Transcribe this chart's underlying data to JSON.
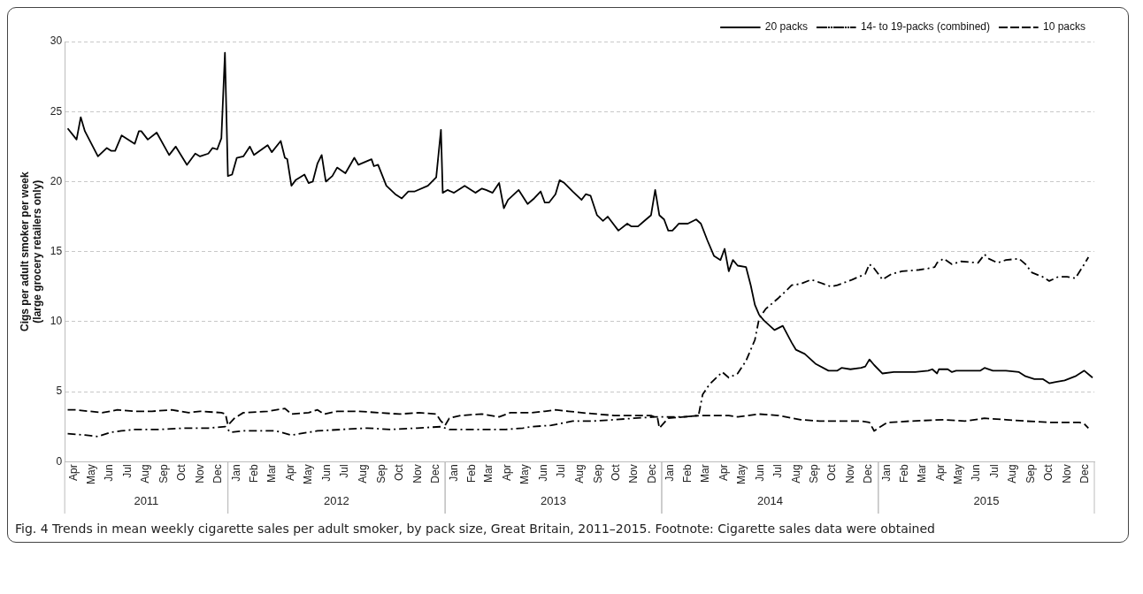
{
  "chart_data": {
    "type": "line",
    "title": "Fig. 4 Trends in mean weekly cigarette sales per adult smoker, by pack size, Great Britain, 2011–2015.",
    "ylabel": "Cigs per adult smoker per week\n(large grocery retailers only)",
    "annotations": [
      "2011",
      "2012",
      "2013",
      "2014",
      "2015",
      "Footnote: Cigarette sales data were obtained"
    ],
    "xlim": [
      "2011-04-01",
      "2015-12-31"
    ],
    "xticks": [
      {
        "value": "2011-04-16",
        "label": "Apr"
      },
      {
        "value": "2011-05-16",
        "label": "May"
      },
      {
        "value": "2011-06-16",
        "label": "Jun"
      },
      {
        "value": "2011-07-16",
        "label": "Jul"
      },
      {
        "value": "2011-08-16",
        "label": "Aug"
      },
      {
        "value": "2011-09-16",
        "label": "Sep"
      },
      {
        "value": "2011-10-16",
        "label": "Oct"
      },
      {
        "value": "2011-11-16",
        "label": "Nov"
      },
      {
        "value": "2011-12-16",
        "label": "Dec"
      },
      {
        "value": "2012-01-16",
        "label": "Jan"
      },
      {
        "value": "2012-02-15",
        "label": "Feb"
      },
      {
        "value": "2012-03-16",
        "label": "Mar"
      },
      {
        "value": "2012-04-16",
        "label": "Apr"
      },
      {
        "value": "2012-05-16",
        "label": "May"
      },
      {
        "value": "2012-06-16",
        "label": "Jun"
      },
      {
        "value": "2012-07-16",
        "label": "Jul"
      },
      {
        "value": "2012-08-16",
        "label": "Aug"
      },
      {
        "value": "2012-09-16",
        "label": "Sep"
      },
      {
        "value": "2012-10-16",
        "label": "Oct"
      },
      {
        "value": "2012-11-16",
        "label": "Nov"
      },
      {
        "value": "2012-12-16",
        "label": "Dec"
      },
      {
        "value": "2013-01-16",
        "label": "Jan"
      },
      {
        "value": "2013-02-15",
        "label": "Feb"
      },
      {
        "value": "2013-03-16",
        "label": "Mar"
      },
      {
        "value": "2013-04-16",
        "label": "Apr"
      },
      {
        "value": "2013-05-16",
        "label": "May"
      },
      {
        "value": "2013-06-16",
        "label": "Jun"
      },
      {
        "value": "2013-07-16",
        "label": "Jul"
      },
      {
        "value": "2013-08-16",
        "label": "Aug"
      },
      {
        "value": "2013-09-16",
        "label": "Sep"
      },
      {
        "value": "2013-10-16",
        "label": "Oct"
      },
      {
        "value": "2013-11-16",
        "label": "Nov"
      },
      {
        "value": "2013-12-16",
        "label": "Dec"
      },
      {
        "value": "2014-01-16",
        "label": "Jan"
      },
      {
        "value": "2014-02-15",
        "label": "Feb"
      },
      {
        "value": "2014-03-16",
        "label": "Mar"
      },
      {
        "value": "2014-04-16",
        "label": "Apr"
      },
      {
        "value": "2014-05-16",
        "label": "May"
      },
      {
        "value": "2014-06-16",
        "label": "Jun"
      },
      {
        "value": "2014-07-16",
        "label": "Jul"
      },
      {
        "value": "2014-08-16",
        "label": "Aug"
      },
      {
        "value": "2014-09-16",
        "label": "Sep"
      },
      {
        "value": "2014-10-16",
        "label": "Oct"
      },
      {
        "value": "2014-11-16",
        "label": "Nov"
      },
      {
        "value": "2014-12-16",
        "label": "Dec"
      },
      {
        "value": "2015-01-16",
        "label": "Jan"
      },
      {
        "value": "2015-02-15",
        "label": "Feb"
      },
      {
        "value": "2015-03-16",
        "label": "Mar"
      },
      {
        "value": "2015-04-16",
        "label": "Apr"
      },
      {
        "value": "2015-05-16",
        "label": "May"
      },
      {
        "value": "2015-06-16",
        "label": "Jun"
      },
      {
        "value": "2015-07-16",
        "label": "Jul"
      },
      {
        "value": "2015-08-16",
        "label": "Aug"
      },
      {
        "value": "2015-09-16",
        "label": "Sep"
      },
      {
        "value": "2015-10-16",
        "label": "Oct"
      },
      {
        "value": "2015-11-16",
        "label": "Nov"
      },
      {
        "value": "2015-12-16",
        "label": "Dec"
      }
    ],
    "ylim": [
      0,
      30
    ],
    "yticks": [
      0,
      5,
      10,
      15,
      20,
      25,
      30
    ],
    "grid": "y",
    "legend": "top right",
    "series": [
      {
        "name": "20 packs",
        "color": "#000000",
        "line_style": "solid",
        "x": [
          "2011-04-06",
          "2011-04-21",
          "2011-04-28",
          "2011-05-05",
          "2011-05-27",
          "2011-06-11",
          "2011-06-18",
          "2011-06-25",
          "2011-07-06",
          "2011-07-28",
          "2011-08-04",
          "2011-08-08",
          "2011-08-19",
          "2011-09-03",
          "2011-09-24",
          "2011-10-05",
          "2011-10-24",
          "2011-11-07",
          "2011-11-15",
          "2011-11-29",
          "2011-12-06",
          "2011-12-14",
          "2011-12-21",
          "2011-12-27",
          "2012-01-01",
          "2012-01-08",
          "2012-01-16",
          "2012-01-27",
          "2012-02-07",
          "2012-02-14",
          "2012-03-08",
          "2012-03-15",
          "2012-03-30",
          "2012-04-06",
          "2012-04-10",
          "2012-04-17",
          "2012-04-24",
          "2012-05-09",
          "2012-05-16",
          "2012-05-23",
          "2012-05-31",
          "2012-06-07",
          "2012-06-14",
          "2012-06-25",
          "2012-07-03",
          "2012-07-17",
          "2012-08-01",
          "2012-08-08",
          "2012-08-30",
          "2012-09-03",
          "2012-09-10",
          "2012-09-24",
          "2012-10-09",
          "2012-10-20",
          "2012-10-31",
          "2012-11-11",
          "2012-12-03",
          "2012-12-17",
          "2012-12-25",
          "2012-12-28",
          "2013-01-05",
          "2013-01-16",
          "2013-02-03",
          "2013-02-21",
          "2013-03-04",
          "2013-03-11",
          "2013-03-22",
          "2013-04-02",
          "2013-04-10",
          "2013-04-17",
          "2013-05-05",
          "2013-05-20",
          "2013-05-31",
          "2013-06-11",
          "2013-06-18",
          "2013-06-25",
          "2013-07-06",
          "2013-07-13",
          "2013-07-21",
          "2013-08-04",
          "2013-08-19",
          "2013-08-26",
          "2013-09-03",
          "2013-09-14",
          "2013-09-24",
          "2013-10-02",
          "2013-10-20",
          "2013-11-04",
          "2013-11-11",
          "2013-11-22",
          "2013-12-03",
          "2013-12-14",
          "2013-12-21",
          "2013-12-28",
          "2014-01-05",
          "2014-01-12",
          "2014-01-19",
          "2014-01-30",
          "2014-02-14",
          "2014-02-28",
          "2014-03-08",
          "2014-03-19",
          "2014-03-30",
          "2014-04-10",
          "2014-04-17",
          "2014-04-24",
          "2014-05-01",
          "2014-05-09",
          "2014-05-23",
          "2014-05-31",
          "2014-06-07",
          "2014-06-14",
          "2014-06-22",
          "2014-07-10",
          "2014-07-24",
          "2014-08-08",
          "2014-08-15",
          "2014-08-30",
          "2014-09-17",
          "2014-10-09",
          "2014-10-24",
          "2014-10-31",
          "2014-11-15",
          "2014-12-03",
          "2014-12-10",
          "2014-12-17",
          "2014-12-25",
          "2015-01-08",
          "2015-01-27",
          "2015-02-03",
          "2015-03-04",
          "2015-03-26",
          "2015-04-02",
          "2015-04-10",
          "2015-04-13",
          "2015-04-28",
          "2015-05-05",
          "2015-05-12",
          "2015-06-11",
          "2015-06-22",
          "2015-06-29",
          "2015-07-13",
          "2015-08-04",
          "2015-08-26",
          "2015-09-06",
          "2015-09-21",
          "2015-10-05",
          "2015-10-16",
          "2015-10-27",
          "2015-11-11",
          "2015-11-29",
          "2015-12-14",
          "2015-12-28"
        ],
        "values": [
          23.8,
          23.0,
          24.6,
          23.6,
          21.8,
          22.4,
          22.2,
          22.2,
          23.3,
          22.7,
          23.6,
          23.6,
          23.0,
          23.5,
          21.9,
          22.5,
          21.2,
          22.0,
          21.8,
          22.0,
          22.4,
          22.3,
          23.1,
          29.2,
          20.4,
          20.5,
          21.7,
          21.8,
          22.5,
          21.9,
          22.6,
          22.1,
          22.9,
          21.7,
          21.6,
          19.7,
          20.1,
          20.5,
          19.9,
          20.0,
          21.3,
          21.9,
          20.0,
          20.4,
          21.0,
          20.6,
          21.7,
          21.2,
          21.6,
          21.1,
          21.2,
          19.7,
          19.1,
          18.8,
          19.3,
          19.3,
          19.7,
          20.3,
          23.7,
          19.2,
          19.4,
          19.2,
          19.7,
          19.2,
          19.5,
          19.4,
          19.2,
          19.9,
          18.1,
          18.7,
          19.4,
          18.4,
          18.8,
          19.3,
          18.5,
          18.5,
          19.1,
          20.1,
          19.9,
          19.3,
          18.7,
          19.1,
          19.0,
          17.6,
          17.2,
          17.5,
          16.5,
          17.0,
          16.8,
          16.8,
          17.2,
          17.6,
          19.4,
          17.6,
          17.3,
          16.5,
          16.5,
          17.0,
          17.0,
          17.3,
          17.0,
          15.8,
          14.7,
          14.4,
          15.2,
          13.6,
          14.4,
          14.0,
          13.9,
          12.6,
          11.2,
          10.5,
          10.1,
          9.4,
          9.7,
          8.5,
          8.0,
          7.7,
          7.0,
          6.5,
          6.5,
          6.7,
          6.6,
          6.7,
          6.8,
          7.3,
          6.9,
          6.3,
          6.4,
          6.4,
          6.4,
          6.5,
          6.6,
          6.3,
          6.6,
          6.6,
          6.4,
          6.5,
          6.5,
          6.5,
          6.7,
          6.5,
          6.5,
          6.4,
          6.1,
          5.9,
          5.9,
          5.6,
          5.7,
          5.8,
          6.1,
          6.5,
          6.0
        ]
      },
      {
        "name": "14- to 19-packs (combined)",
        "color": "#000000",
        "line_style": "dashdot",
        "x": [
          "2011-04-06",
          "2011-05-05",
          "2011-05-27",
          "2011-06-18",
          "2011-07-06",
          "2011-07-28",
          "2011-09-06",
          "2011-10-20",
          "2011-11-29",
          "2011-12-28",
          "2012-01-05",
          "2012-01-27",
          "2012-03-22",
          "2012-04-17",
          "2012-05-16",
          "2012-05-31",
          "2012-07-10",
          "2012-08-23",
          "2012-10-02",
          "2012-11-15",
          "2012-12-25",
          "2013-01-08",
          "2013-03-04",
          "2013-04-13",
          "2013-05-12",
          "2013-05-27",
          "2013-06-29",
          "2013-08-04",
          "2013-09-06",
          "2013-10-13",
          "2013-11-15",
          "2013-12-21",
          "2014-01-12",
          "2014-02-07",
          "2014-03-04",
          "2014-03-11",
          "2014-03-22",
          "2014-04-13",
          "2014-04-24",
          "2014-05-09",
          "2014-05-23",
          "2014-06-07",
          "2014-06-14",
          "2014-06-25",
          "2014-07-17",
          "2014-08-01",
          "2014-08-08",
          "2014-08-23",
          "2014-09-10",
          "2014-09-24",
          "2014-10-13",
          "2014-10-24",
          "2014-11-18",
          "2014-12-10",
          "2014-12-17",
          "2014-12-25",
          "2015-01-08",
          "2015-01-23",
          "2015-02-10",
          "2015-03-11",
          "2015-03-26",
          "2015-04-06",
          "2015-04-10",
          "2015-04-21",
          "2015-05-05",
          "2015-05-20",
          "2015-06-18",
          "2015-06-29",
          "2015-07-06",
          "2015-07-21",
          "2015-08-04",
          "2015-08-26",
          "2015-09-06",
          "2015-09-17",
          "2015-10-05",
          "2015-10-16",
          "2015-10-31",
          "2015-11-15",
          "2015-11-29",
          "2015-12-14",
          "2015-12-21"
        ],
        "values": [
          2.0,
          1.9,
          1.8,
          2.1,
          2.2,
          2.3,
          2.3,
          2.4,
          2.4,
          2.5,
          2.1,
          2.2,
          2.2,
          1.9,
          2.1,
          2.2,
          2.3,
          2.4,
          2.3,
          2.4,
          2.5,
          2.3,
          2.3,
          2.3,
          2.4,
          2.5,
          2.6,
          2.9,
          2.9,
          3.0,
          3.1,
          3.2,
          3.2,
          3.2,
          3.3,
          4.8,
          5.5,
          6.4,
          6.0,
          6.3,
          7.2,
          8.7,
          10.2,
          10.9,
          11.7,
          12.3,
          12.6,
          12.7,
          13.0,
          12.8,
          12.5,
          12.6,
          13.0,
          13.4,
          14.1,
          13.8,
          13.0,
          13.4,
          13.6,
          13.7,
          13.8,
          13.9,
          14.2,
          14.5,
          14.1,
          14.3,
          14.2,
          14.8,
          14.5,
          14.2,
          14.4,
          14.5,
          14.1,
          13.5,
          13.2,
          12.9,
          13.2,
          13.2,
          13.1,
          14.1,
          14.6
        ]
      },
      {
        "name": "10 packs",
        "color": "#000000",
        "line_style": "dashed",
        "x": [
          "2011-04-06",
          "2011-04-21",
          "2011-05-12",
          "2011-06-03",
          "2011-06-29",
          "2011-07-28",
          "2011-08-26",
          "2011-09-28",
          "2011-10-27",
          "2011-11-15",
          "2011-12-21",
          "2011-12-28",
          "2012-01-01",
          "2012-01-12",
          "2012-01-27",
          "2012-03-08",
          "2012-04-06",
          "2012-04-17",
          "2012-05-16",
          "2012-05-31",
          "2012-06-11",
          "2012-07-03",
          "2012-08-08",
          "2012-09-10",
          "2012-10-16",
          "2012-11-18",
          "2012-12-17",
          "2012-12-25",
          "2013-01-01",
          "2013-01-08",
          "2013-01-27",
          "2013-03-04",
          "2013-04-02",
          "2013-04-21",
          "2013-05-27",
          "2013-06-18",
          "2013-07-06",
          "2013-07-28",
          "2013-08-19",
          "2013-09-14",
          "2013-10-13",
          "2013-11-15",
          "2013-12-14",
          "2013-12-25",
          "2013-12-28",
          "2014-01-12",
          "2014-02-07",
          "2014-03-08",
          "2014-03-30",
          "2014-04-24",
          "2014-05-09",
          "2014-06-14",
          "2014-07-17",
          "2014-08-23",
          "2014-09-24",
          "2014-10-31",
          "2014-12-03",
          "2014-12-17",
          "2014-12-25",
          "2015-01-01",
          "2015-01-16",
          "2015-02-25",
          "2015-04-21",
          "2015-05-27",
          "2015-06-29",
          "2015-08-04",
          "2015-09-06",
          "2015-10-20",
          "2015-12-06",
          "2015-12-14",
          "2015-12-21"
        ],
        "values": [
          3.7,
          3.7,
          3.6,
          3.5,
          3.7,
          3.6,
          3.6,
          3.7,
          3.5,
          3.6,
          3.5,
          3.4,
          2.6,
          3.1,
          3.5,
          3.6,
          3.8,
          3.4,
          3.5,
          3.7,
          3.4,
          3.6,
          3.6,
          3.5,
          3.4,
          3.5,
          3.4,
          2.9,
          2.6,
          3.1,
          3.3,
          3.4,
          3.2,
          3.5,
          3.5,
          3.6,
          3.7,
          3.6,
          3.5,
          3.4,
          3.3,
          3.3,
          3.3,
          3.1,
          2.4,
          3.1,
          3.2,
          3.3,
          3.3,
          3.3,
          3.2,
          3.4,
          3.3,
          3.0,
          2.9,
          2.9,
          2.9,
          2.8,
          2.2,
          2.4,
          2.8,
          2.9,
          3.0,
          2.9,
          3.1,
          3.0,
          2.9,
          2.8,
          2.8,
          2.7,
          2.4
        ]
      }
    ]
  }
}
